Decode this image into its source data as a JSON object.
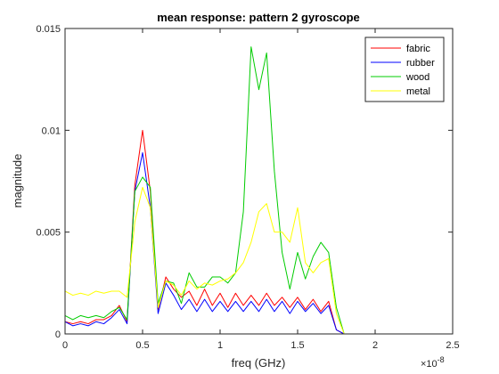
{
  "chart_data": {
    "type": "line",
    "title": "mean response: pattern 2 gyroscope",
    "xlabel": "freq (GHz)",
    "ylabel": "magnitude",
    "x_exponent_label": "×10",
    "x_exponent_power": "-8",
    "xlim": [
      0,
      25
    ],
    "ylim": [
      0,
      0.015
    ],
    "x_ticks": [
      0,
      5,
      10,
      15,
      20,
      25
    ],
    "x_tick_labels": [
      "0",
      "0.5",
      "1",
      "1.5",
      "2",
      "2.5"
    ],
    "y_ticks": [
      0,
      0.005,
      0.01,
      0.015
    ],
    "y_tick_labels": [
      "0",
      "0.005",
      "0.01",
      "0.015"
    ],
    "grid": false,
    "legend_position": "top-right",
    "x": [
      0,
      0.5,
      1,
      1.5,
      2,
      2.5,
      3,
      3.5,
      4,
      4.5,
      5,
      5.5,
      6,
      6.5,
      7,
      7.5,
      8,
      8.5,
      9,
      9.5,
      10,
      10.5,
      11,
      11.5,
      12,
      12.5,
      13,
      13.5,
      14,
      14.5,
      15,
      15.5,
      16,
      16.5,
      17,
      17.5,
      18,
      18.5,
      19,
      19.5,
      20,
      20.5,
      21,
      21.5,
      22,
      22.5,
      23,
      23.5,
      24,
      24.5,
      25
    ],
    "series": [
      {
        "name": "fabric",
        "color": "#ff0000",
        "values": [
          0.0006,
          0.0005,
          0.0006,
          0.0005,
          0.0007,
          0.0007,
          0.0009,
          0.0014,
          0.0006,
          0.0073,
          0.01,
          0.007,
          0.0012,
          0.0028,
          0.0022,
          0.0018,
          0.0021,
          0.0014,
          0.0022,
          0.0014,
          0.002,
          0.0013,
          0.002,
          0.0014,
          0.0019,
          0.0014,
          0.002,
          0.0014,
          0.0018,
          0.0013,
          0.0018,
          0.0012,
          0.0017,
          0.0011,
          0.0016,
          0.0002,
          0,
          0,
          0,
          0,
          0,
          0,
          0,
          0,
          0,
          0,
          0,
          0,
          0,
          0,
          0
        ]
      },
      {
        "name": "rubber",
        "color": "#0000ff",
        "values": [
          0.0006,
          0.0004,
          0.0005,
          0.0004,
          0.0006,
          0.0005,
          0.0008,
          0.0012,
          0.0005,
          0.007,
          0.0089,
          0.0062,
          0.001,
          0.0025,
          0.0019,
          0.0012,
          0.0017,
          0.0011,
          0.0017,
          0.0011,
          0.0016,
          0.0011,
          0.0016,
          0.0011,
          0.0016,
          0.0011,
          0.0017,
          0.0011,
          0.0016,
          0.001,
          0.0016,
          0.0011,
          0.0015,
          0.001,
          0.0014,
          0.0002,
          0,
          0,
          0,
          0,
          0,
          0,
          0,
          0,
          0,
          0,
          0,
          0,
          0,
          0,
          0
        ]
      },
      {
        "name": "wood",
        "color": "#00cc00",
        "values": [
          0.0009,
          0.0007,
          0.0009,
          0.0008,
          0.0009,
          0.0008,
          0.0011,
          0.0013,
          0.0007,
          0.007,
          0.0077,
          0.0072,
          0.0015,
          0.0026,
          0.0025,
          0.0015,
          0.003,
          0.0023,
          0.0023,
          0.0028,
          0.0028,
          0.0025,
          0.003,
          0.006,
          0.0141,
          0.012,
          0.0138,
          0.008,
          0.004,
          0.0022,
          0.004,
          0.0027,
          0.0038,
          0.0045,
          0.004,
          0.0013,
          0,
          0,
          0,
          0,
          0,
          0,
          0,
          0,
          0,
          0,
          0,
          0,
          0,
          0,
          0
        ]
      },
      {
        "name": "metal",
        "color": "#ffff00",
        "values": [
          0.0021,
          0.0019,
          0.002,
          0.0019,
          0.0021,
          0.002,
          0.0021,
          0.0021,
          0.0018,
          0.0055,
          0.0072,
          0.0062,
          0.0013,
          0.0026,
          0.0024,
          0.0019,
          0.0026,
          0.0022,
          0.0025,
          0.0024,
          0.0026,
          0.0027,
          0.003,
          0.0035,
          0.0045,
          0.006,
          0.0064,
          0.005,
          0.005,
          0.0045,
          0.0062,
          0.0035,
          0.003,
          0.0035,
          0.0037,
          0.001,
          0,
          0,
          0,
          0,
          0,
          0,
          0,
          0,
          0,
          0,
          0,
          0,
          0,
          0,
          0
        ]
      }
    ]
  }
}
